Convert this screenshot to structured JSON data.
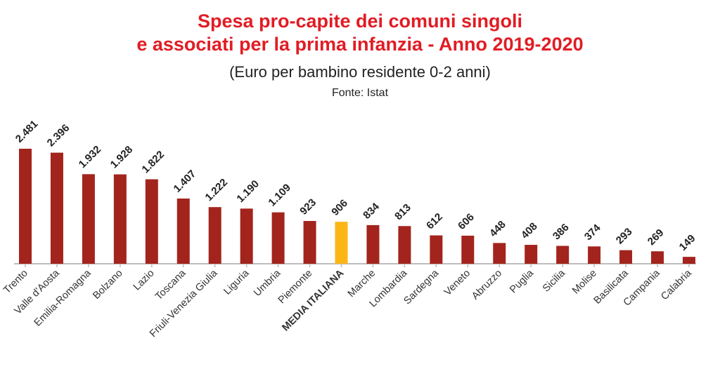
{
  "colors": {
    "title": "#e11c24",
    "bar": "#a3241d",
    "highlight": "#fbb616",
    "axis": "#bdbdbd"
  },
  "chart_data": {
    "type": "bar",
    "title_line1": "Spesa pro-capite dei comuni singoli",
    "title_line2": "e associati per la prima infanzia - Anno 2019-2020",
    "subtitle": "(Euro per bambino residente 0-2 anni)",
    "source": "Fonte: Istat",
    "categories": [
      "Trento",
      "Valle d'Aosta",
      "Emilia-Romagna",
      "Bolzano",
      "Lazio",
      "Toscana",
      "Friuli-Venezia Giulia",
      "Liguria",
      "Umbria",
      "Piemonte",
      "MEDIA ITALIANA",
      "Marche",
      "Lombardia",
      "Sardegna",
      "Veneto",
      "Abruzzo",
      "Puglia",
      "Sicilia",
      "Molise",
      "Basilicata",
      "Campania",
      "Calabria"
    ],
    "values": [
      2481,
      2396,
      1932,
      1928,
      1822,
      1407,
      1222,
      1190,
      1109,
      923,
      906,
      834,
      813,
      612,
      606,
      448,
      408,
      386,
      374,
      293,
      269,
      149
    ],
    "value_labels": [
      "2.481",
      "2.396",
      "1.932",
      "1.928",
      "1.822",
      "1.407",
      "1.222",
      "1.190",
      "1.109",
      "923",
      "906",
      "834",
      "813",
      "612",
      "606",
      "448",
      "408",
      "386",
      "374",
      "293",
      "269",
      "149"
    ],
    "highlight_category": "MEDIA ITALIANA",
    "xlabel": "",
    "ylabel": "",
    "ylim": [
      0,
      2500
    ],
    "grid": false
  }
}
